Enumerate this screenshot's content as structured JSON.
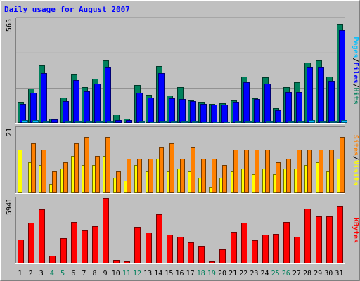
{
  "chart_data": {
    "type": "bar",
    "title": "Daily usage for August 2007",
    "categories": [
      "1",
      "2",
      "3",
      "4",
      "5",
      "6",
      "7",
      "8",
      "9",
      "10",
      "11",
      "12",
      "13",
      "14",
      "15",
      "16",
      "17",
      "18",
      "19",
      "20",
      "21",
      "22",
      "23",
      "24",
      "25",
      "26",
      "27",
      "28",
      "29",
      "30",
      "31"
    ],
    "weekend_days": [
      "4",
      "5",
      "11",
      "12",
      "18",
      "19",
      "25",
      "26"
    ],
    "grid": true,
    "panels": [
      {
        "max_label": "565",
        "ylim": [
          0,
          565
        ],
        "series": [
          {
            "name": "Hits",
            "color": "#00805c",
            "values": [
              116,
              188,
              312,
              22,
              136,
              264,
              194,
              242,
              340,
              44,
              22,
              206,
              154,
              311,
              148,
              196,
              124,
              116,
              104,
              106,
              124,
              251,
              132,
              250,
              80,
              194,
              220,
              330,
              339,
              251,
              540
            ]
          },
          {
            "name": "Files",
            "color": "#0000ff",
            "values": [
              102,
              165,
              270,
              18,
              120,
              232,
              170,
              212,
              302,
              14,
              14,
              164,
              138,
              272,
              135,
              128,
              120,
              102,
              98,
              100,
              116,
              221,
              128,
              214,
              68,
              168,
              168,
              302,
              300,
              226,
              505
            ]
          },
          {
            "name": "Pages",
            "color": "#00c0ff",
            "values": [
              16,
              16,
              12,
              4,
              12,
              12,
              12,
              12,
              12,
              4,
              4,
              12,
              8,
              12,
              10,
              12,
              10,
              8,
              8,
              8,
              10,
              12,
              8,
              12,
              8,
              12,
              12,
              14,
              12,
              12,
              16
            ]
          }
        ]
      },
      {
        "max_label": "21",
        "ylim": [
          0,
          21
        ],
        "series": [
          {
            "name": "Visits",
            "color": "#ffff00",
            "values": [
              14,
              10,
              9,
              3,
              8,
              12,
              9,
              9,
              12,
              5,
              4,
              9,
              7,
              11,
              7,
              8,
              7,
              5,
              2,
              5,
              7,
              8,
              6,
              8,
              6,
              8,
              8,
              9,
              10,
              7,
              11
            ]
          },
          {
            "name": "Sites",
            "color": "#ff8000",
            "values": [
              0,
              16,
              14,
              7,
              10,
              16,
              18,
              12,
              18,
              7,
              11,
              11,
              11,
              15,
              16,
              11,
              15,
              11,
              11,
              9,
              14,
              14,
              14,
              14,
              10,
              11,
              14,
              14,
              14,
              14,
              18
            ]
          }
        ]
      },
      {
        "max_label": "5941",
        "ylim": [
          0,
          5941
        ],
        "series": [
          {
            "name": "KBytes",
            "color": "#ff0000",
            "values": [
              2200,
              3700,
              4900,
              700,
              2300,
              3800,
              3000,
              3400,
              5941,
              300,
              200,
              3300,
              2800,
              4500,
              2600,
              2400,
              1900,
              1600,
              200,
              1300,
              2900,
              3700,
              2100,
              2600,
              2700,
              3800,
              2400,
              5000,
              4300,
              4300,
              5250
            ]
          }
        ]
      }
    ]
  }
}
